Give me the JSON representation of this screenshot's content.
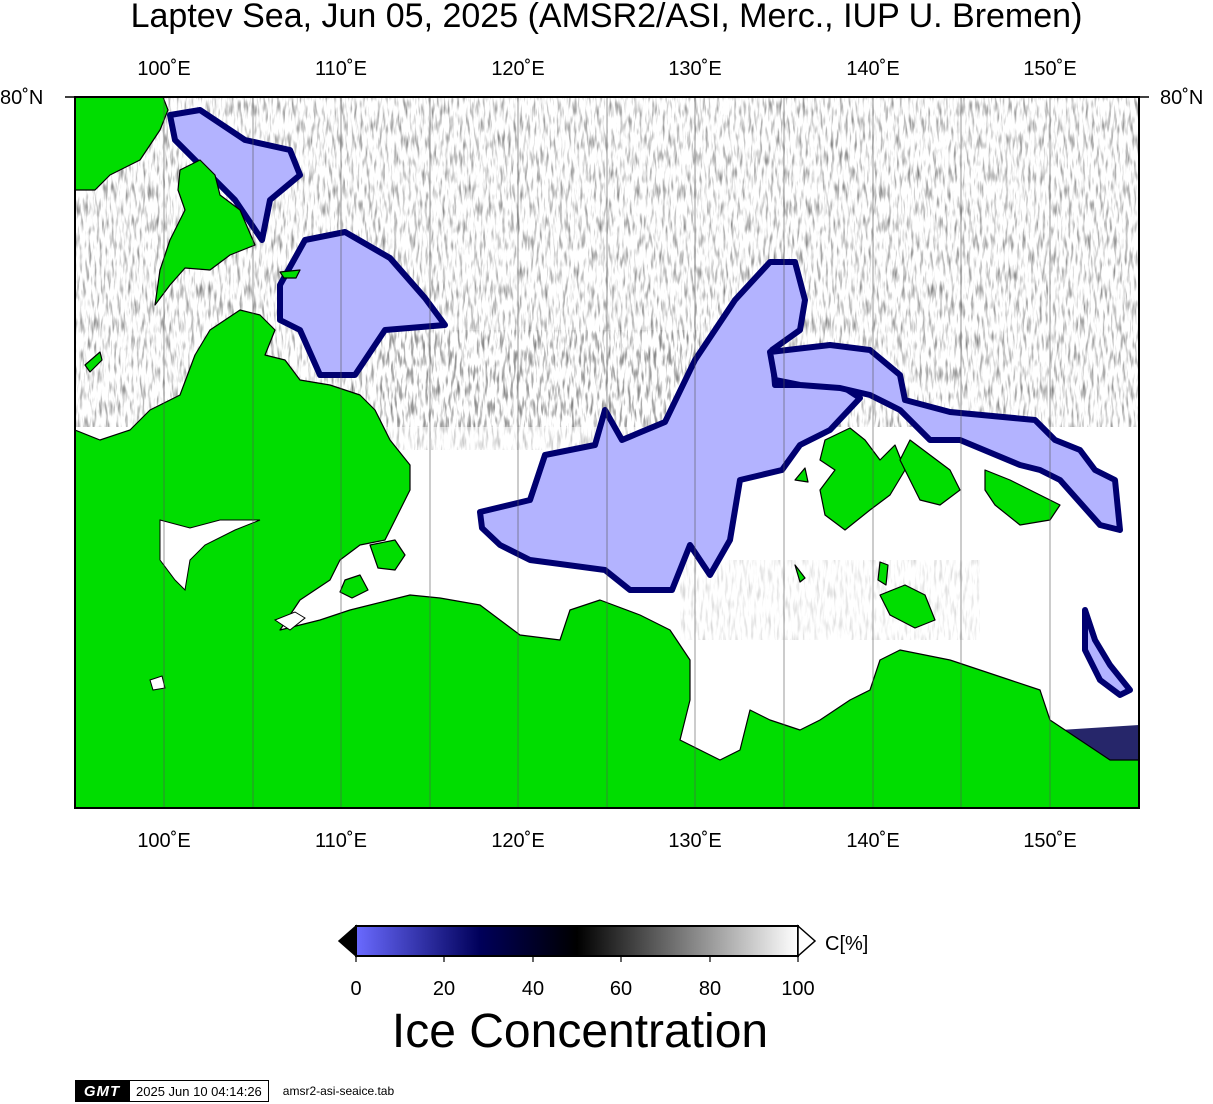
{
  "title": "Laptev Sea, Jun 05, 2025 (AMSR2/ASI, Merc., IUP U. Bremen)",
  "map": {
    "lon_labels": [
      "100˚E",
      "110˚E",
      "120˚E",
      "130˚E",
      "140˚E",
      "150˚E"
    ],
    "lat_labels": [
      "80˚N",
      "80˚N"
    ],
    "colors": {
      "land": "#00dd00",
      "open_water": "#ffffff",
      "low_ice": "#b3b3ff",
      "mid_ice": "#000070",
      "frame": "#000000"
    }
  },
  "colorbar": {
    "unit_label": "C[%]",
    "tick_labels": [
      "0",
      "20",
      "40",
      "60",
      "80",
      "100"
    ],
    "title": "Ice Concentration",
    "colors": [
      "#6a6aff",
      "#00005a",
      "#000000",
      "#ffffff"
    ]
  },
  "footer": {
    "logo": "GMT",
    "timestamp": "2025 Jun 10 04:14:26",
    "filename": "amsr2-asi-seaice.tab"
  }
}
